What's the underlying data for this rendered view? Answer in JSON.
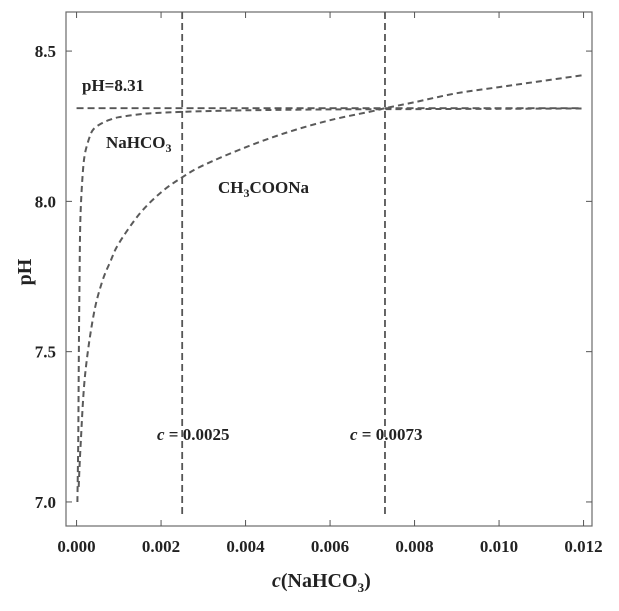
{
  "chart_data": {
    "type": "line",
    "xlabel_prefix": "c",
    "xlabel_main": "(NaHCO",
    "xlabel_sub": "3",
    "xlabel_end": ")",
    "ylabel": "pH",
    "xlim": [
      -0.00025,
      0.0122
    ],
    "ylim": [
      6.92,
      8.63
    ],
    "x_ticks": [
      0,
      0.002,
      0.004,
      0.006,
      0.008,
      0.01,
      0.012
    ],
    "x_tick_labels": [
      "0.000",
      "0.002",
      "0.004",
      "0.006",
      "0.008",
      "0.010",
      "0.012"
    ],
    "y_ticks": [
      7.0,
      7.5,
      8.0,
      8.5
    ],
    "y_tick_labels": [
      "7.0",
      "7.5",
      "8.0",
      "8.5"
    ],
    "grid": false,
    "series": [
      {
        "name": "NaHCO3",
        "label_main": "NaHCO",
        "label_sub": "3",
        "x": [
          2e-05,
          4e-05,
          6e-05,
          8e-05,
          0.0001,
          0.00015,
          0.0002,
          0.0003,
          0.0004,
          0.0006,
          0.0008,
          0.001,
          0.0015,
          0.002,
          0.003,
          0.004,
          0.006,
          0.008,
          0.01,
          0.012
        ],
        "y": [
          7.0,
          7.22,
          7.6,
          7.86,
          7.98,
          8.1,
          8.16,
          8.21,
          8.24,
          8.26,
          8.272,
          8.28,
          8.29,
          8.295,
          8.3,
          8.303,
          8.306,
          8.307,
          8.308,
          8.309
        ]
      },
      {
        "name": "CH3COONa",
        "label_main": "CH",
        "label_sub": "3",
        "label_end": "COONa",
        "x": [
          5e-05,
          0.0001,
          0.0002,
          0.0004,
          0.0006,
          0.0008,
          0.001,
          0.0015,
          0.002,
          0.0025,
          0.003,
          0.004,
          0.005,
          0.006,
          0.007,
          0.0073,
          0.008,
          0.009,
          0.01,
          0.011,
          0.012
        ],
        "y": [
          7.05,
          7.2,
          7.42,
          7.62,
          7.73,
          7.8,
          7.86,
          7.96,
          8.03,
          8.08,
          8.12,
          8.18,
          8.23,
          8.27,
          8.3,
          8.31,
          8.33,
          8.36,
          8.38,
          8.4,
          8.42
        ]
      }
    ],
    "reference_lines": {
      "horizontal": {
        "y": 8.31,
        "label": "pH=8.31"
      },
      "vertical": [
        {
          "x": 0.0025,
          "label_var": "c",
          "label_value": " = 0.0025"
        },
        {
          "x": 0.0073,
          "label_var": "c",
          "label_value": " = 0.0073"
        }
      ]
    }
  }
}
